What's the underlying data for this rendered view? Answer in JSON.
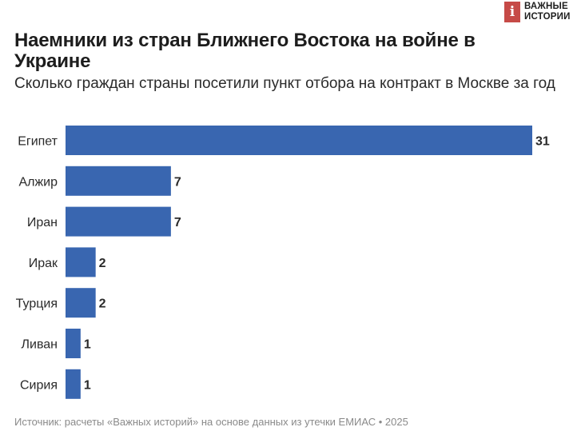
{
  "logo": {
    "mark": "i",
    "line1": "ВАЖНЫЕ",
    "line2": "ИСТОРИИ"
  },
  "title": "Наемники из стран Ближнего Востока на войне в Украине",
  "subtitle": "Сколько граждан страны посетили пункт отбора на контракт в Москве за год",
  "source": "Источник: расчеты «Важных историй» на основе данных из утечки ЕМИАС • 2025",
  "chart_data": {
    "type": "bar",
    "orientation": "horizontal",
    "categories": [
      "Египет",
      "Алжир",
      "Иран",
      "Ирак",
      "Турция",
      "Ливан",
      "Сирия"
    ],
    "values": [
      31,
      7,
      7,
      2,
      2,
      1,
      1
    ],
    "bar_color": "#3966b0",
    "xlim": [
      0,
      31
    ],
    "grid": false,
    "legend": "none"
  }
}
